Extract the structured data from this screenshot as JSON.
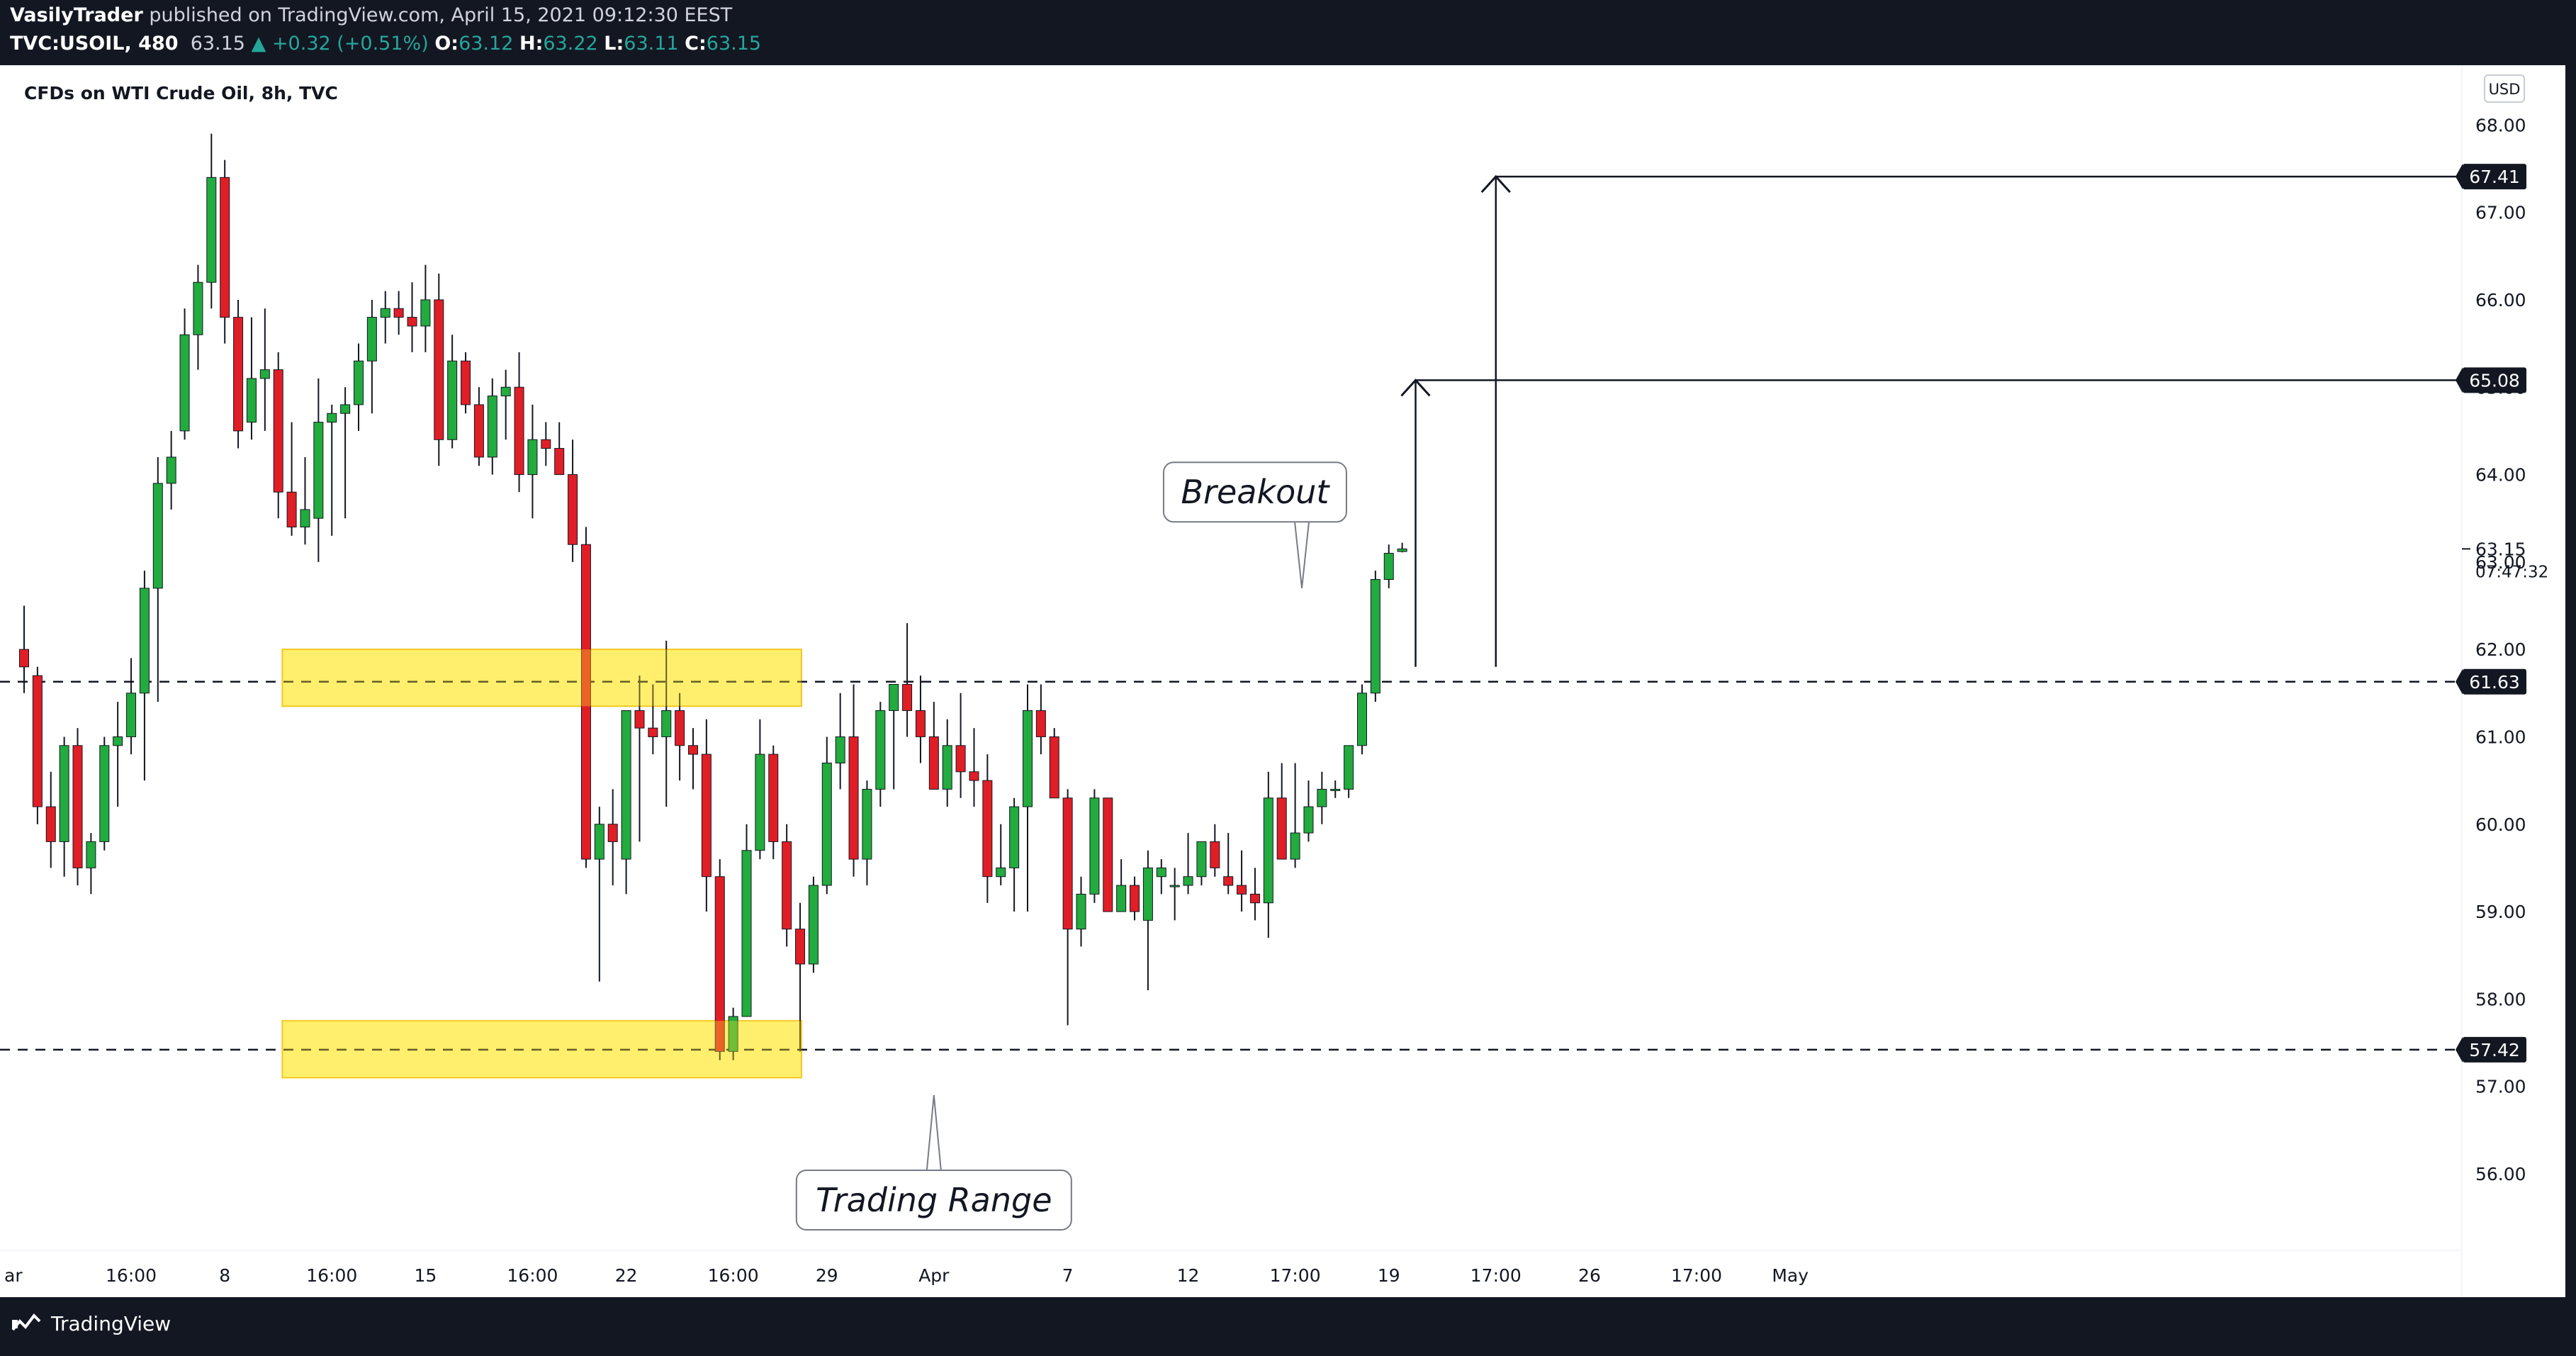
{
  "header": {
    "publisher": "VasilyTrader",
    "published_text": "published on TradingView.com, April 15, 2021 09:12:30 EEST",
    "symbol": "TVC:USOIL, 480",
    "last": "63.15",
    "change": "+0.32 (+0.51%)",
    "ohlc": [
      {
        "label": "O:",
        "value": "63.12"
      },
      {
        "label": "H:",
        "value": "63.22"
      },
      {
        "label": "L:",
        "value": "63.11"
      },
      {
        "label": "C:",
        "value": "63.15"
      }
    ]
  },
  "footer": {
    "brand": "TradingView"
  },
  "chart_data": {
    "type": "candlestick",
    "title": "CFDs on WTI Crude Oil, 8h, TVC",
    "currency": "USD",
    "ylim": [
      55.5,
      68.6
    ],
    "y_ticks": [
      68.0,
      67.0,
      66.0,
      65.0,
      64.0,
      63.0,
      62.0,
      61.0,
      60.0,
      59.0,
      58.0,
      57.0,
      56.0
    ],
    "x_tick_labels": [
      {
        "bar": -1,
        "label": "ar"
      },
      {
        "bar": 8,
        "label": "16:00"
      },
      {
        "bar": 15,
        "label": "8"
      },
      {
        "bar": 23,
        "label": "16:00"
      },
      {
        "bar": 30,
        "label": "15"
      },
      {
        "bar": 38,
        "label": "16:00"
      },
      {
        "bar": 45,
        "label": "22"
      },
      {
        "bar": 53,
        "label": "16:00"
      },
      {
        "bar": 60,
        "label": "29"
      },
      {
        "bar": 68,
        "label": "Apr"
      },
      {
        "bar": 78,
        "label": "7"
      },
      {
        "bar": 87,
        "label": "12"
      },
      {
        "bar": 95,
        "label": "17:00"
      },
      {
        "bar": 102,
        "label": "19"
      },
      {
        "bar": 110,
        "label": "17:00"
      },
      {
        "bar": 117,
        "label": "26"
      },
      {
        "bar": 125,
        "label": "17:00"
      },
      {
        "bar": 132,
        "label": "May"
      }
    ],
    "candles": [
      [
        62.0,
        62.5,
        61.5,
        61.8
      ],
      [
        61.7,
        61.8,
        60.0,
        60.2
      ],
      [
        60.2,
        60.6,
        59.5,
        59.8
      ],
      [
        59.8,
        61.0,
        59.4,
        60.9
      ],
      [
        60.9,
        61.1,
        59.3,
        59.5
      ],
      [
        59.5,
        59.9,
        59.2,
        59.8
      ],
      [
        59.8,
        61.0,
        59.7,
        60.9
      ],
      [
        60.9,
        61.4,
        60.2,
        61.0
      ],
      [
        61.0,
        61.9,
        60.8,
        61.5
      ],
      [
        61.5,
        62.9,
        60.5,
        62.7
      ],
      [
        62.7,
        64.2,
        61.4,
        63.9
      ],
      [
        63.9,
        64.5,
        63.6,
        64.2
      ],
      [
        64.5,
        65.9,
        64.4,
        65.6
      ],
      [
        65.6,
        66.4,
        65.2,
        66.2
      ],
      [
        66.2,
        67.9,
        65.9,
        67.4
      ],
      [
        67.4,
        67.6,
        65.5,
        65.8
      ],
      [
        65.8,
        66.0,
        64.3,
        64.5
      ],
      [
        64.6,
        65.8,
        64.4,
        65.1
      ],
      [
        65.1,
        65.9,
        64.5,
        65.2
      ],
      [
        65.2,
        65.4,
        63.5,
        63.8
      ],
      [
        63.8,
        64.6,
        63.3,
        63.4
      ],
      [
        63.4,
        64.2,
        63.2,
        63.6
      ],
      [
        63.5,
        65.1,
        63.0,
        64.6
      ],
      [
        64.6,
        64.8,
        63.3,
        64.7
      ],
      [
        64.7,
        65.0,
        63.5,
        64.8
      ],
      [
        64.8,
        65.5,
        64.5,
        65.3
      ],
      [
        65.3,
        66.0,
        64.7,
        65.8
      ],
      [
        65.8,
        66.1,
        65.5,
        65.9
      ],
      [
        65.9,
        66.1,
        65.6,
        65.8
      ],
      [
        65.8,
        66.2,
        65.4,
        65.7
      ],
      [
        65.7,
        66.4,
        65.4,
        66.0
      ],
      [
        66.0,
        66.3,
        64.1,
        64.4
      ],
      [
        64.4,
        65.6,
        64.3,
        65.3
      ],
      [
        65.3,
        65.4,
        64.7,
        64.8
      ],
      [
        64.8,
        65.0,
        64.1,
        64.2
      ],
      [
        64.2,
        65.1,
        64.0,
        64.9
      ],
      [
        64.9,
        65.2,
        64.4,
        65.0
      ],
      [
        65.0,
        65.4,
        63.8,
        64.0
      ],
      [
        64.0,
        64.8,
        63.5,
        64.4
      ],
      [
        64.4,
        64.6,
        64.1,
        64.3
      ],
      [
        64.3,
        64.6,
        64.0,
        64.0
      ],
      [
        64.0,
        64.4,
        63.0,
        63.2
      ],
      [
        63.2,
        63.4,
        59.5,
        59.6
      ],
      [
        59.6,
        60.2,
        58.2,
        60.0
      ],
      [
        60.0,
        60.4,
        59.3,
        59.8
      ],
      [
        59.6,
        61.2,
        59.2,
        61.3
      ],
      [
        61.3,
        61.7,
        59.8,
        61.1
      ],
      [
        61.1,
        61.6,
        60.8,
        61.0
      ],
      [
        61.0,
        62.1,
        60.2,
        61.3
      ],
      [
        61.3,
        61.5,
        60.5,
        60.9
      ],
      [
        60.9,
        61.1,
        60.4,
        60.8
      ],
      [
        60.8,
        61.2,
        59.0,
        59.4
      ],
      [
        59.4,
        59.6,
        57.3,
        57.4
      ],
      [
        57.4,
        57.9,
        57.3,
        57.8
      ],
      [
        57.8,
        60.0,
        57.8,
        59.7
      ],
      [
        59.7,
        61.2,
        59.6,
        60.8
      ],
      [
        60.8,
        60.9,
        59.6,
        59.8
      ],
      [
        59.8,
        60.0,
        58.6,
        58.8
      ],
      [
        58.8,
        59.1,
        57.4,
        58.4
      ],
      [
        58.4,
        59.4,
        58.3,
        59.3
      ],
      [
        59.3,
        61.0,
        59.2,
        60.7
      ],
      [
        60.7,
        61.5,
        60.4,
        61.0
      ],
      [
        61.0,
        61.6,
        59.4,
        59.6
      ],
      [
        59.6,
        60.5,
        59.3,
        60.4
      ],
      [
        60.4,
        61.4,
        60.2,
        61.3
      ],
      [
        61.3,
        61.6,
        60.4,
        61.6
      ],
      [
        61.6,
        62.3,
        61.0,
        61.3
      ],
      [
        61.3,
        61.7,
        60.7,
        61.0
      ],
      [
        61.0,
        61.4,
        60.5,
        60.4
      ],
      [
        60.4,
        61.2,
        60.2,
        60.9
      ],
      [
        60.9,
        61.5,
        60.3,
        60.6
      ],
      [
        60.6,
        61.1,
        60.2,
        60.5
      ],
      [
        60.5,
        60.8,
        59.1,
        59.4
      ],
      [
        59.4,
        60.0,
        59.3,
        59.5
      ],
      [
        59.5,
        60.3,
        59.0,
        60.2
      ],
      [
        60.2,
        61.6,
        59.0,
        61.3
      ],
      [
        61.3,
        61.6,
        60.8,
        61.0
      ],
      [
        61.0,
        61.1,
        60.3,
        60.3
      ],
      [
        60.3,
        60.4,
        57.7,
        58.8
      ],
      [
        58.8,
        59.4,
        58.6,
        59.2
      ],
      [
        59.2,
        60.4,
        59.1,
        60.3
      ],
      [
        60.3,
        60.3,
        59.0,
        59.0
      ],
      [
        59.0,
        59.6,
        59.0,
        59.3
      ],
      [
        59.3,
        59.4,
        58.9,
        59.0
      ],
      [
        58.9,
        59.7,
        58.1,
        59.5
      ],
      [
        59.4,
        59.6,
        59.2,
        59.5
      ],
      [
        59.3,
        59.5,
        58.9,
        59.3
      ],
      [
        59.3,
        59.9,
        59.2,
        59.4
      ],
      [
        59.4,
        59.8,
        59.3,
        59.8
      ],
      [
        59.8,
        60.0,
        59.4,
        59.5
      ],
      [
        59.4,
        59.9,
        59.2,
        59.3
      ],
      [
        59.3,
        59.7,
        59.0,
        59.2
      ],
      [
        59.2,
        59.5,
        58.9,
        59.1
      ],
      [
        59.1,
        60.6,
        58.7,
        60.3
      ],
      [
        60.3,
        60.7,
        59.6,
        59.6
      ],
      [
        59.6,
        60.7,
        59.5,
        59.9
      ],
      [
        59.9,
        60.5,
        59.8,
        60.2
      ],
      [
        60.2,
        60.6,
        60.0,
        60.4
      ],
      [
        60.4,
        60.5,
        60.3,
        60.4
      ],
      [
        60.4,
        60.9,
        60.3,
        60.9
      ],
      [
        60.9,
        61.6,
        60.8,
        61.5
      ],
      [
        61.5,
        62.9,
        61.4,
        62.8
      ],
      [
        62.8,
        63.2,
        62.7,
        63.1
      ],
      [
        63.12,
        63.22,
        63.11,
        63.15
      ]
    ],
    "price_lines": [
      {
        "price": 61.63,
        "label": "61.63",
        "style": "dashed"
      },
      {
        "price": 57.42,
        "label": "57.42",
        "style": "dashed"
      },
      {
        "price": 65.08,
        "label": "65.08",
        "style": "solid"
      },
      {
        "price": 67.41,
        "label": "67.41",
        "style": "solid"
      }
    ],
    "zones": [
      {
        "top": 62.0,
        "bottom": 61.35
      },
      {
        "top": 57.75,
        "bottom": 57.1
      }
    ],
    "last_price": {
      "value": "63.15",
      "countdown": "07:47:32"
    },
    "annotations": [
      {
        "text": "Breakout",
        "box_price": 63.8,
        "bar": 92,
        "pointer_bar": 95.5,
        "pointer_price": 62.7
      },
      {
        "text": "Trading Range",
        "box_price": 55.7,
        "bar": 68,
        "pointer_bar": 68,
        "pointer_price": 56.9
      }
    ],
    "arrows": [
      {
        "bar": 104,
        "from": 61.8,
        "to": 65.08
      },
      {
        "bar": 110,
        "from": 61.8,
        "to": 67.41
      }
    ]
  }
}
